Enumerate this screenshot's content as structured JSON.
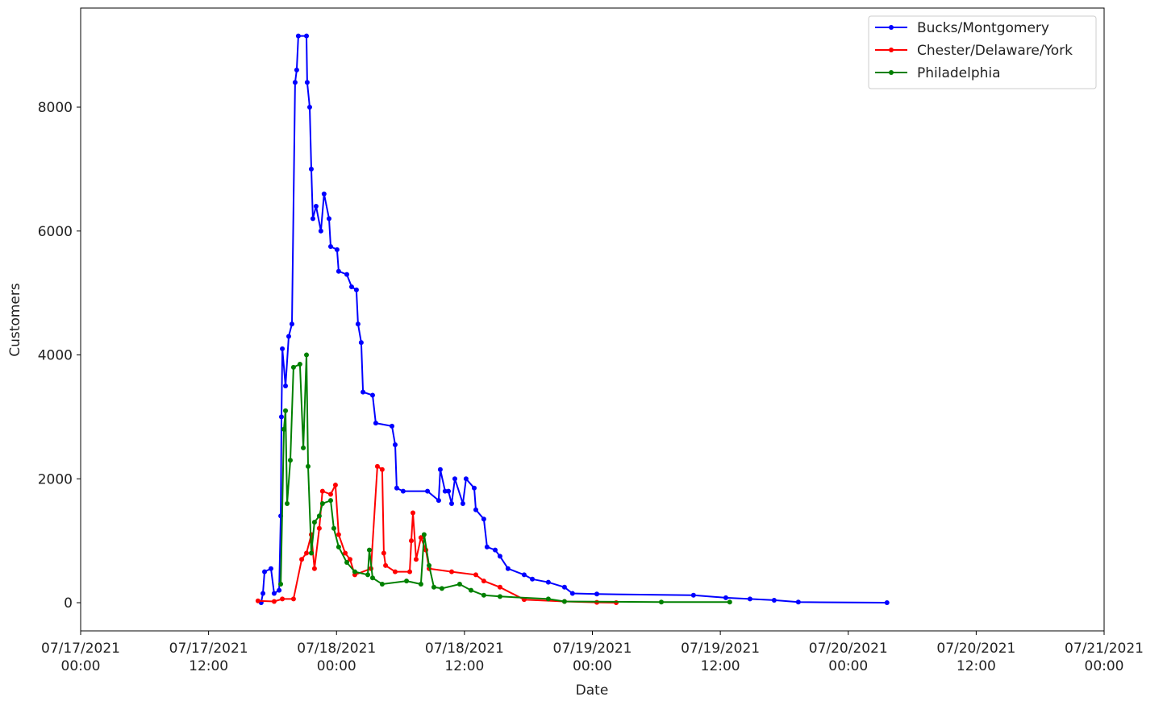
{
  "chart_data": {
    "type": "line",
    "x_label": "Date",
    "y_label": "Customers",
    "xlim": [
      "2021-07-17T00:00",
      "2021-07-21T00:00"
    ],
    "xticks": [
      {
        "value": "2021-07-17T00:00",
        "label": "07/17/2021\n00:00"
      },
      {
        "value": "2021-07-17T12:00",
        "label": "07/17/2021\n12:00"
      },
      {
        "value": "2021-07-18T00:00",
        "label": "07/18/2021\n00:00"
      },
      {
        "value": "2021-07-18T12:00",
        "label": "07/18/2021\n12:00"
      },
      {
        "value": "2021-07-19T00:00",
        "label": "07/19/2021\n00:00"
      },
      {
        "value": "2021-07-19T12:00",
        "label": "07/19/2021\n12:00"
      },
      {
        "value": "2021-07-20T00:00",
        "label": "07/20/2021\n00:00"
      },
      {
        "value": "2021-07-20T12:00",
        "label": "07/20/2021\n12:00"
      },
      {
        "value": "2021-07-21T00:00",
        "label": "07/21/2021\n00:00"
      }
    ],
    "ylim": [
      -455,
      9600
    ],
    "yticks": [
      0,
      2000,
      4000,
      6000,
      8000
    ],
    "legend": "upper right",
    "series": [
      {
        "name": "Bucks/Montgomery",
        "color": "#0000ff",
        "x": [
          "2021-07-17T16:56",
          "2021-07-17T17:06",
          "2021-07-17T17:15",
          "2021-07-17T17:51",
          "2021-07-17T18:09",
          "2021-07-17T18:37",
          "2021-07-17T18:46",
          "2021-07-17T18:50",
          "2021-07-17T18:55",
          "2021-07-17T19:13",
          "2021-07-17T19:31",
          "2021-07-17T19:49",
          "2021-07-17T20:07",
          "2021-07-17T20:16",
          "2021-07-17T20:25",
          "2021-07-17T21:11",
          "2021-07-17T21:15",
          "2021-07-17T21:29",
          "2021-07-17T21:38",
          "2021-07-17T21:47",
          "2021-07-17T22:05",
          "2021-07-17T22:32",
          "2021-07-17T22:50",
          "2021-07-17T23:18",
          "2021-07-17T23:27",
          "2021-07-18T00:03",
          "2021-07-18T00:12",
          "2021-07-18T00:58",
          "2021-07-18T01:25",
          "2021-07-18T01:52",
          "2021-07-18T02:01",
          "2021-07-18T02:19",
          "2021-07-18T02:29",
          "2021-07-18T03:23",
          "2021-07-18T03:41",
          "2021-07-18T05:12",
          "2021-07-18T05:30",
          "2021-07-18T05:39",
          "2021-07-18T06:15",
          "2021-07-18T08:32",
          "2021-07-18T09:35",
          "2021-07-18T09:44",
          "2021-07-18T10:11",
          "2021-07-18T10:30",
          "2021-07-18T10:48",
          "2021-07-18T11:06",
          "2021-07-18T11:51",
          "2021-07-18T12:09",
          "2021-07-18T12:55",
          "2021-07-18T13:04",
          "2021-07-18T13:49",
          "2021-07-18T14:07",
          "2021-07-18T14:53",
          "2021-07-18T15:20",
          "2021-07-18T16:05",
          "2021-07-18T17:36",
          "2021-07-18T18:22",
          "2021-07-18T19:52",
          "2021-07-18T21:23",
          "2021-07-18T22:08",
          "2021-07-19T00:25",
          "2021-07-19T09:29",
          "2021-07-19T12:31",
          "2021-07-19T14:47",
          "2021-07-19T17:03",
          "2021-07-19T19:19",
          "2021-07-20T03:38"
        ],
        "values": [
          0,
          150,
          500,
          550,
          150,
          200,
          1400,
          3000,
          4100,
          3500,
          4300,
          4500,
          8400,
          8600,
          9150,
          9150,
          8400,
          8000,
          7000,
          6200,
          6400,
          6000,
          6600,
          6200,
          5750,
          5700,
          5350,
          5300,
          5100,
          5050,
          4500,
          4200,
          3400,
          3350,
          2900,
          2850,
          2550,
          1850,
          1800,
          1800,
          1650,
          2150,
          1800,
          1800,
          1600,
          2000,
          1600,
          2000,
          1850,
          1500,
          1350,
          900,
          850,
          750,
          550,
          450,
          380,
          330,
          250,
          150,
          140,
          120,
          80,
          60,
          40,
          10,
          0
        ]
      },
      {
        "name": "Chester/Delaware/York",
        "color": "#ff0000",
        "x": [
          "2021-07-17T16:38",
          "2021-07-17T18:09",
          "2021-07-17T18:55",
          "2021-07-17T19:58",
          "2021-07-17T20:44",
          "2021-07-17T21:11",
          "2021-07-17T21:38",
          "2021-07-17T21:56",
          "2021-07-17T22:23",
          "2021-07-17T22:41",
          "2021-07-17T23:27",
          "2021-07-17T23:54",
          "2021-07-18T00:12",
          "2021-07-18T00:49",
          "2021-07-18T01:16",
          "2021-07-18T01:43",
          "2021-07-18T03:14",
          "2021-07-18T03:50",
          "2021-07-18T04:17",
          "2021-07-18T04:26",
          "2021-07-18T04:36",
          "2021-07-18T05:30",
          "2021-07-18T06:52",
          "2021-07-18T07:01",
          "2021-07-18T07:10",
          "2021-07-18T07:28",
          "2021-07-18T07:55",
          "2021-07-18T08:23",
          "2021-07-18T08:41",
          "2021-07-18T10:48",
          "2021-07-18T13:04",
          "2021-07-18T13:49",
          "2021-07-18T15:20",
          "2021-07-18T17:36",
          "2021-07-18T21:23",
          "2021-07-19T00:25",
          "2021-07-19T02:14"
        ],
        "values": [
          30,
          20,
          60,
          60,
          700,
          800,
          1100,
          550,
          1200,
          1800,
          1750,
          1900,
          1100,
          800,
          700,
          450,
          550,
          2200,
          2150,
          800,
          600,
          500,
          500,
          1000,
          1450,
          700,
          1050,
          850,
          550,
          500,
          450,
          350,
          250,
          50,
          20,
          5,
          0
        ]
      },
      {
        "name": "Philadelphia",
        "color": "#008000",
        "x": [
          "2021-07-17T18:46",
          "2021-07-17T19:04",
          "2021-07-17T19:13",
          "2021-07-17T19:22",
          "2021-07-17T19:40",
          "2021-07-17T19:58",
          "2021-07-17T20:34",
          "2021-07-17T20:53",
          "2021-07-17T21:11",
          "2021-07-17T21:20",
          "2021-07-17T21:38",
          "2021-07-17T21:56",
          "2021-07-17T22:23",
          "2021-07-17T22:41",
          "2021-07-17T23:27",
          "2021-07-17T23:45",
          "2021-07-18T00:12",
          "2021-07-18T00:58",
          "2021-07-18T01:43",
          "2021-07-18T02:56",
          "2021-07-18T03:05",
          "2021-07-18T03:23",
          "2021-07-18T04:17",
          "2021-07-18T06:34",
          "2021-07-18T07:55",
          "2021-07-18T08:13",
          "2021-07-18T08:41",
          "2021-07-18T09:08",
          "2021-07-18T09:53",
          "2021-07-18T11:33",
          "2021-07-18T12:37",
          "2021-07-18T13:49",
          "2021-07-18T15:20",
          "2021-07-18T19:52",
          "2021-07-18T21:23",
          "2021-07-19T06:28",
          "2021-07-19T12:53"
        ],
        "values": [
          300,
          2800,
          3100,
          1600,
          2300,
          3800,
          3850,
          2500,
          4000,
          2200,
          800,
          1300,
          1400,
          1600,
          1650,
          1200,
          900,
          650,
          500,
          450,
          850,
          400,
          300,
          350,
          300,
          1100,
          600,
          250,
          230,
          300,
          200,
          120,
          100,
          60,
          20,
          10,
          10
        ]
      }
    ]
  }
}
